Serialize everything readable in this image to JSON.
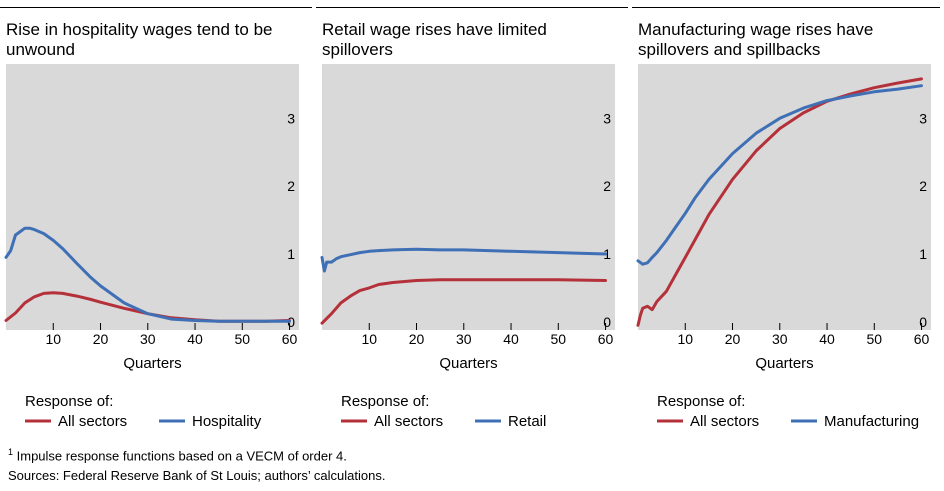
{
  "colors": {
    "all_sectors": "#b5313a",
    "sector": "#3f6fb5",
    "plot_bg": "#d9d9d9",
    "rule": "#000000"
  },
  "footnote_marker": "1",
  "footnote_text": " Impulse response functions based on a VECM of order 4.",
  "sources": "Sources: Federal Reserve Bank of St Louis; authors’ calculations.",
  "chart_data": [
    {
      "type": "line",
      "title_lines": [
        "Rise in hospitality wages tend to be",
        "unwound"
      ],
      "xlabel": "Quarters",
      "xlim": [
        0,
        62
      ],
      "ylim": [
        -0.12,
        3.8
      ],
      "xticks": [
        10,
        20,
        30,
        40,
        50,
        60
      ],
      "yticks": [
        0,
        1,
        2,
        3
      ],
      "legend_title": "Response of:",
      "series": [
        {
          "name": "All sectors",
          "color": "#b5313a",
          "x": [
            0,
            2,
            4,
            6,
            8,
            10,
            12,
            15,
            18,
            20,
            25,
            30,
            35,
            40,
            45,
            50,
            55,
            60
          ],
          "y": [
            0.02,
            0.13,
            0.28,
            0.37,
            0.42,
            0.43,
            0.42,
            0.38,
            0.33,
            0.29,
            0.2,
            0.12,
            0.06,
            0.03,
            0.01,
            0.01,
            0.01,
            0.02
          ]
        },
        {
          "name": "Hospitality",
          "color": "#3f6fb5",
          "x": [
            0,
            1,
            2,
            3,
            4,
            5,
            6,
            8,
            10,
            12,
            15,
            18,
            20,
            25,
            30,
            35,
            40,
            45,
            50,
            55,
            60
          ],
          "y": [
            0.95,
            1.05,
            1.28,
            1.33,
            1.38,
            1.38,
            1.36,
            1.3,
            1.2,
            1.08,
            0.86,
            0.65,
            0.53,
            0.28,
            0.12,
            0.04,
            0.02,
            0.01,
            0.01,
            0.01,
            0.01
          ]
        }
      ]
    },
    {
      "type": "line",
      "title_lines": [
        "Retail wage rises have limited",
        "spillovers"
      ],
      "xlabel": "Quarters",
      "xlim": [
        0,
        62
      ],
      "ylim": [
        -0.12,
        3.8
      ],
      "xticks": [
        10,
        20,
        30,
        40,
        50,
        60
      ],
      "yticks": [
        0,
        1,
        2,
        3
      ],
      "legend_title": "Response of:",
      "series": [
        {
          "name": "All sectors",
          "color": "#b5313a",
          "x": [
            0,
            2,
            4,
            6,
            8,
            10,
            12,
            15,
            20,
            25,
            30,
            40,
            50,
            60
          ],
          "y": [
            -0.02,
            0.12,
            0.28,
            0.38,
            0.46,
            0.5,
            0.55,
            0.58,
            0.61,
            0.62,
            0.62,
            0.62,
            0.62,
            0.61
          ]
        },
        {
          "name": "Retail",
          "color": "#3f6fb5",
          "x": [
            0,
            0.5,
            1,
            2,
            3,
            4,
            6,
            8,
            10,
            12,
            15,
            20,
            25,
            30,
            40,
            50,
            60
          ],
          "y": [
            0.95,
            0.75,
            0.88,
            0.88,
            0.93,
            0.96,
            0.99,
            1.02,
            1.04,
            1.05,
            1.06,
            1.07,
            1.06,
            1.06,
            1.04,
            1.02,
            1.0
          ]
        }
      ]
    },
    {
      "type": "line",
      "title_lines": [
        "Manufacturing wage rises have",
        "spillovers and spillbacks"
      ],
      "xlabel": "Quarters",
      "xlim": [
        0,
        62
      ],
      "ylim": [
        -0.12,
        3.8
      ],
      "xticks": [
        10,
        20,
        30,
        40,
        50,
        60
      ],
      "yticks": [
        0,
        1,
        2,
        3
      ],
      "legend_title": "Response of:",
      "series": [
        {
          "name": "All sectors",
          "color": "#b5313a",
          "x": [
            0,
            0.5,
            1,
            2,
            3,
            4,
            6,
            8,
            10,
            12,
            15,
            20,
            25,
            30,
            35,
            40,
            45,
            50,
            55,
            60
          ],
          "y": [
            -0.05,
            0.1,
            0.2,
            0.23,
            0.18,
            0.3,
            0.45,
            0.7,
            0.95,
            1.2,
            1.58,
            2.1,
            2.52,
            2.85,
            3.08,
            3.25,
            3.36,
            3.45,
            3.52,
            3.58
          ]
        },
        {
          "name": "Manufacturing",
          "color": "#3f6fb5",
          "x": [
            0,
            1,
            2,
            3,
            4,
            6,
            8,
            10,
            12,
            15,
            20,
            25,
            30,
            35,
            40,
            45,
            50,
            55,
            60
          ],
          "y": [
            0.9,
            0.85,
            0.87,
            0.95,
            1.02,
            1.2,
            1.4,
            1.6,
            1.82,
            2.1,
            2.48,
            2.78,
            3.0,
            3.15,
            3.26,
            3.33,
            3.39,
            3.43,
            3.48
          ]
        }
      ]
    }
  ]
}
